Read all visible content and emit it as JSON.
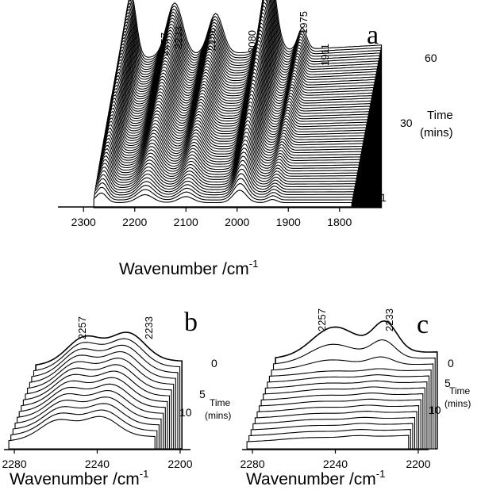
{
  "chart_data": [
    {
      "panel_label": "a",
      "type": "line",
      "xlabel": "Wavenumber /cm",
      "xlabel_sup": "-1",
      "x_ticks": [
        2300,
        2200,
        2100,
        2000,
        1900,
        1800
      ],
      "xlim": [
        2350,
        1750
      ],
      "x_reversed": true,
      "peak_labels": [
        "2257",
        "2233",
        "2158",
        "2080",
        "1975",
        "1911"
      ],
      "peaks": [
        2257,
        2233,
        2158,
        2080,
        1975,
        1911
      ],
      "time_axis": {
        "label_line1": "Time",
        "label_line2": "(mins)",
        "ticks": [
          "1",
          "30",
          "60"
        ]
      },
      "series_count": 60
    },
    {
      "panel_label": "b",
      "type": "line",
      "xlabel": "Wavenumber /cm",
      "xlabel_sup": "-1",
      "x_ticks": [
        2280,
        2240,
        2200
      ],
      "xlim": [
        2285,
        2195
      ],
      "x_reversed": true,
      "peak_labels": [
        "2257",
        "2233"
      ],
      "peaks": [
        2257,
        2233
      ],
      "time_axis": {
        "label_line1": "Time",
        "label_line2": "(mins)",
        "ticks": [
          "0",
          "5",
          "10"
        ]
      },
      "series_count": 14
    },
    {
      "panel_label": "c",
      "type": "line",
      "xlabel": "Wavenumber /cm",
      "xlabel_sup": "-1",
      "x_ticks": [
        2280,
        2240,
        2200
      ],
      "xlim": [
        2285,
        2195
      ],
      "x_reversed": true,
      "peak_labels": [
        "2257",
        "2233"
      ],
      "peaks": [
        2257,
        2233
      ],
      "time_axis": {
        "label_line1": "Time",
        "label_line2": "(mins)",
        "ticks": [
          "0",
          "5",
          "10"
        ]
      },
      "series_count": 15
    }
  ]
}
